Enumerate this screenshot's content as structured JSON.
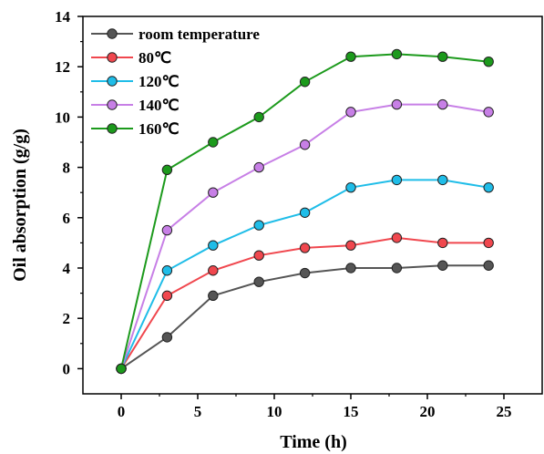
{
  "chart_data": {
    "type": "line",
    "xlabel": "Time (h)",
    "ylabel": "Oil absorption (g/g)",
    "xlim": [
      -2.5,
      27.5
    ],
    "ylim": [
      -1,
      14
    ],
    "xticks": [
      0,
      5,
      10,
      15,
      20,
      25
    ],
    "yticks": [
      0,
      2,
      4,
      6,
      8,
      10,
      12,
      14
    ],
    "grid": false,
    "legend_position": "top-left",
    "x": [
      0,
      3,
      6,
      9,
      12,
      15,
      18,
      21,
      24
    ],
    "series": [
      {
        "name": "room temperature",
        "color": "#555555",
        "values": [
          0,
          1.25,
          2.9,
          3.45,
          3.8,
          4.0,
          4.0,
          4.1,
          4.1
        ]
      },
      {
        "name": "80℃",
        "color": "#f0474e",
        "values": [
          0,
          2.9,
          3.9,
          4.5,
          4.8,
          4.9,
          5.2,
          5.0,
          5.0
        ]
      },
      {
        "name": "120℃",
        "color": "#1fbde8",
        "values": [
          0,
          3.9,
          4.9,
          5.7,
          6.2,
          7.2,
          7.5,
          7.5,
          7.2
        ]
      },
      {
        "name": "140℃",
        "color": "#c77fe6",
        "values": [
          0,
          5.5,
          7.0,
          8.0,
          8.9,
          10.2,
          10.5,
          10.5,
          10.2
        ]
      },
      {
        "name": "160℃",
        "color": "#1c9a1c",
        "values": [
          0,
          7.9,
          9.0,
          10.0,
          11.4,
          12.4,
          12.5,
          12.4,
          12.2
        ]
      }
    ]
  }
}
